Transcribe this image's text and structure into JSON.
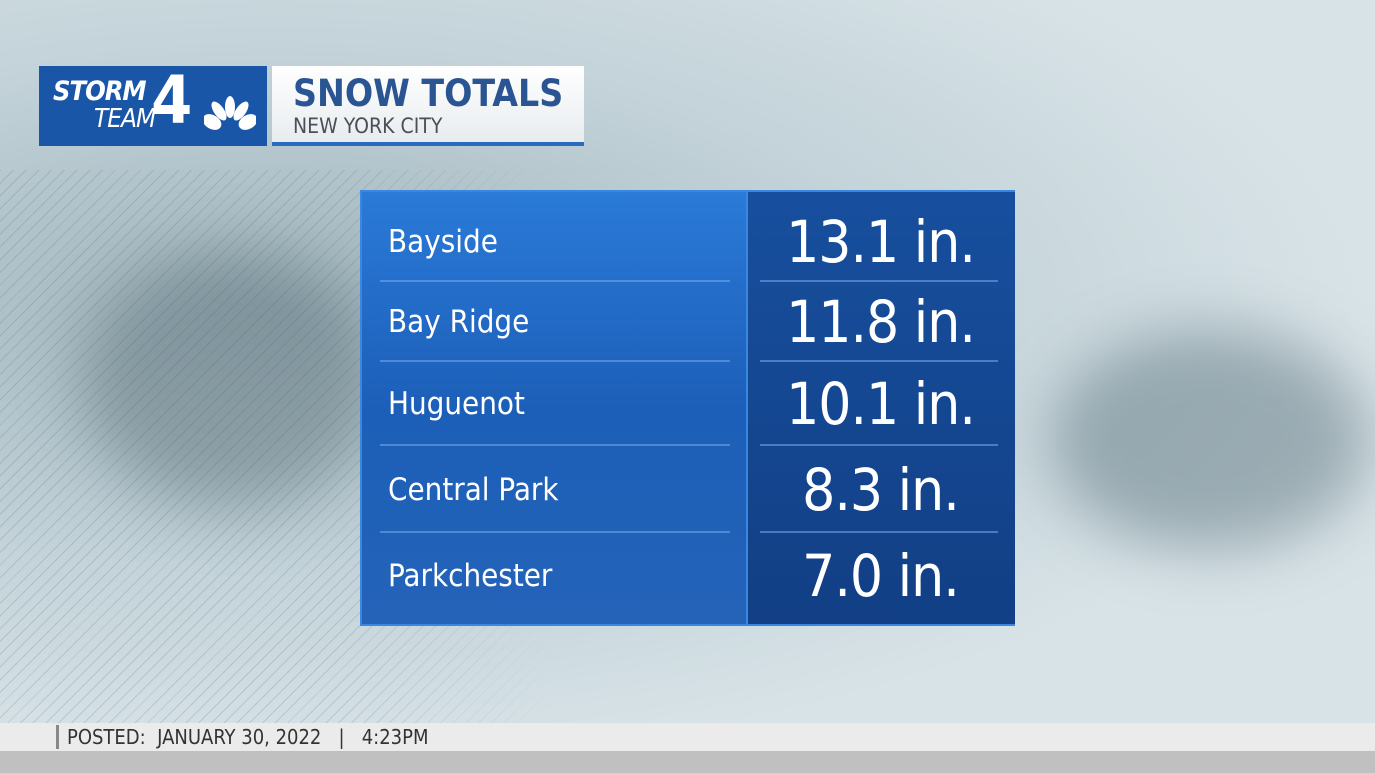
{
  "logo": {
    "line1": "STORM",
    "line2": "TEAM",
    "number": "4",
    "icon": "nbc-peacock-icon"
  },
  "header": {
    "title": "SNOW TOTALS",
    "subtitle": "NEW YORK CITY"
  },
  "rows": [
    {
      "location": "Bayside",
      "total": "13.1 in."
    },
    {
      "location": "Bay Ridge",
      "total": "11.8 in."
    },
    {
      "location": "Huguenot",
      "total": "10.1 in."
    },
    {
      "location": "Central Park",
      "total": "8.3 in."
    },
    {
      "location": "Parkchester",
      "total": "7.0 in."
    }
  ],
  "footer": {
    "posted": "POSTED:  JANUARY 30, 2022   |   4:23PM"
  },
  "colors": {
    "brand_blue": "#1a56a8",
    "table_blue": "#2a7ad8",
    "title_blue": "#2a5592"
  }
}
